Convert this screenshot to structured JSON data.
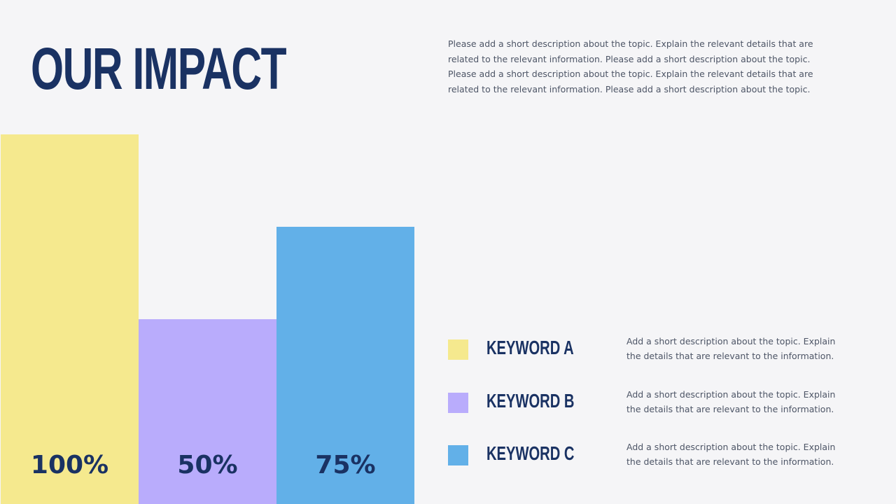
{
  "slide": {
    "title": "OUR IMPACT",
    "intro": "Please add a short description about the topic. Explain the relevant details that are related to the relevant information. Please add a short description about the topic. Please add a short description about the topic. Explain the relevant details that are related to the relevant information. Please add a short description about the topic."
  },
  "chart_data": {
    "type": "bar",
    "categories": [
      "Keyword A",
      "Keyword B",
      "Keyword C"
    ],
    "values": [
      100,
      50,
      75
    ],
    "value_labels": [
      "100%",
      "50%",
      "75%"
    ],
    "colors": [
      "#f5e98e",
      "#b9acfc",
      "#62b0e8"
    ],
    "ylim": [
      0,
      100
    ],
    "grid": false,
    "legend_position": "right"
  },
  "legend": [
    {
      "keyword": "KEYWORD A",
      "description": "Add a short description about the topic. Explain the details that are relevant to the information.",
      "color": "#f5e98e"
    },
    {
      "keyword": "KEYWORD B",
      "description": "Add a short description about the topic. Explain the details that are relevant to the information.",
      "color": "#b9acfc"
    },
    {
      "keyword": "KEYWORD C",
      "description": "Add a short description about the topic. Explain the details that are relevant to the information.",
      "color": "#62b0e8"
    }
  ]
}
